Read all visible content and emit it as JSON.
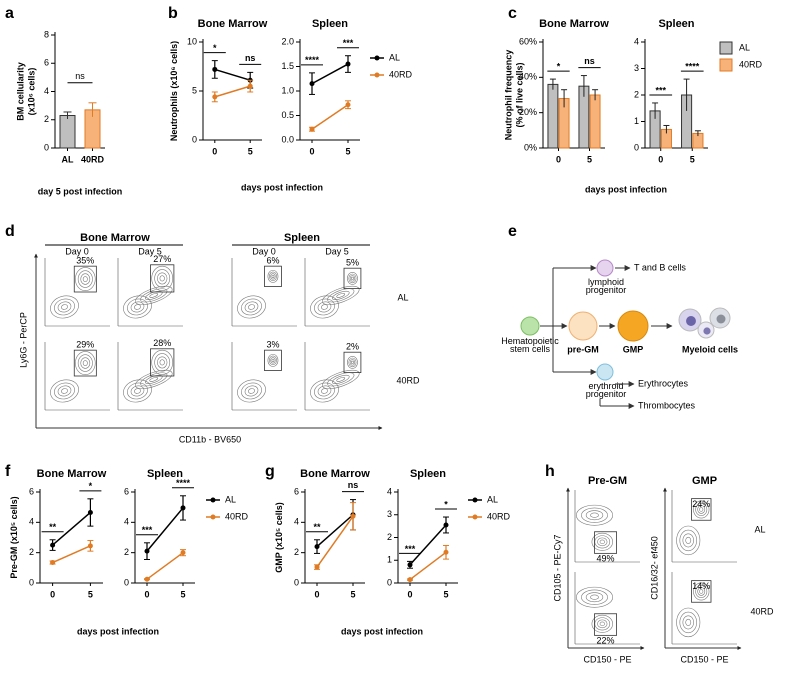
{
  "chart_data": [
    {
      "panel_label": "a",
      "type": "bar",
      "ylabel": [
        "BM cellularity",
        "(x10⁶ cells)"
      ],
      "xlabel": "day 5 post infection",
      "categories": [
        "AL",
        "40RD"
      ],
      "values": [
        2.3,
        2.7
      ],
      "errors": [
        0.25,
        0.5
      ],
      "colors": [
        "#bfbfbf",
        "#f7b27a"
      ],
      "edge_colors": [
        "#333333",
        "#e07b24"
      ],
      "annotation": "ns",
      "ylim": [
        0,
        8
      ],
      "yticks": [
        0,
        2,
        4,
        6,
        8
      ]
    },
    {
      "panel_label": "b",
      "type": "line",
      "title": "Bone Marrow",
      "ylabel": [
        "Neutrophils (x10⁶ cells)"
      ],
      "xlabel": "days post infection",
      "categories": [
        "0",
        "5"
      ],
      "series": [
        {
          "color": "#000000",
          "values": [
            7.2,
            6.1
          ],
          "errors": [
            0.9,
            0.8
          ]
        },
        {
          "color": "#e07b24",
          "values": [
            4.4,
            5.5
          ],
          "errors": [
            0.5,
            0.6
          ]
        }
      ],
      "annotations": [
        "*",
        "ns"
      ],
      "ylim": [
        0,
        10
      ],
      "yticks": [
        0,
        5,
        10
      ]
    },
    {
      "type": "line",
      "title": "Spleen",
      "categories": [
        "0",
        "5"
      ],
      "series": [
        {
          "name": "AL",
          "color": "#000000",
          "values": [
            1.15,
            1.55
          ],
          "errors": [
            0.22,
            0.17
          ]
        },
        {
          "name": "40RD",
          "color": "#e07b24",
          "values": [
            0.22,
            0.72
          ],
          "errors": [
            0.04,
            0.08
          ]
        }
      ],
      "annotations": [
        "****",
        "***"
      ],
      "ylim": [
        0,
        2
      ],
      "yticks": [
        {
          "value": 0,
          "label": "0.0"
        },
        {
          "value": 0.5,
          "label": "0.5"
        },
        {
          "value": 1,
          "label": "1.0"
        },
        {
          "value": 1.5,
          "label": "1.5"
        },
        {
          "value": 2,
          "label": "2.0"
        }
      ]
    },
    {
      "panel_label": "c",
      "type": "bar",
      "title": "Bone Marrow",
      "ylabel": [
        "Neutrophil frequency",
        "(% of live cells)"
      ],
      "xlabel": "days post infection",
      "categories": [
        "0",
        "5"
      ],
      "series": [
        {
          "color": "#bfbfbf",
          "edge": "#333333",
          "values": [
            36,
            35
          ],
          "errors": [
            3,
            6
          ]
        },
        {
          "color": "#f7b27a",
          "edge": "#e07b24",
          "values": [
            28,
            30
          ],
          "errors": [
            5,
            3
          ]
        }
      ],
      "annotations": [
        "*",
        "ns"
      ],
      "ylim": [
        0,
        60
      ],
      "yticks": [
        {
          "value": 0,
          "label": "0%"
        },
        {
          "value": 20,
          "label": "20%"
        },
        {
          "value": 40,
          "label": "40%"
        },
        {
          "value": 60,
          "label": "60%"
        }
      ]
    },
    {
      "type": "bar",
      "title": "Spleen",
      "categories": [
        "0",
        "5"
      ],
      "series": [
        {
          "name": "AL",
          "color": "#bfbfbf",
          "edge": "#333333",
          "values": [
            1.4,
            2.0
          ],
          "errors": [
            0.3,
            0.6
          ]
        },
        {
          "name": "40RD",
          "color": "#f7b27a",
          "edge": "#e07b24",
          "values": [
            0.7,
            0.55
          ],
          "errors": [
            0.15,
            0.1
          ]
        }
      ],
      "annotations": [
        "***",
        "****"
      ],
      "ylim": [
        0,
        4
      ],
      "yticks": [
        0,
        1,
        2,
        3,
        4
      ]
    },
    {
      "panel_label": "f",
      "type": "line",
      "title": "Bone Marrow",
      "ylabel": [
        "Pre-GM (x10⁵ cells)"
      ],
      "xlabel": "days post infection",
      "categories": [
        "0",
        "5"
      ],
      "series": [
        {
          "color": "#000000",
          "values": [
            2.5,
            4.65
          ],
          "errors": [
            0.35,
            0.9
          ]
        },
        {
          "color": "#e07b24",
          "values": [
            1.35,
            2.45
          ],
          "errors": [
            0.1,
            0.35
          ]
        }
      ],
      "annotations": [
        "**",
        "*"
      ],
      "ylim": [
        0,
        6
      ],
      "yticks": [
        0,
        2,
        4,
        6
      ]
    },
    {
      "type": "line",
      "title": "Spleen",
      "categories": [
        "0",
        "5"
      ],
      "series": [
        {
          "name": "AL",
          "color": "#000000",
          "values": [
            2.1,
            4.95
          ],
          "errors": [
            0.55,
            0.8
          ]
        },
        {
          "name": "40RD",
          "color": "#e07b24",
          "values": [
            0.25,
            2.0
          ],
          "errors": [
            0.03,
            0.2
          ]
        }
      ],
      "annotations": [
        "***",
        "****"
      ],
      "ylim": [
        0,
        6
      ],
      "yticks": [
        0,
        2,
        4,
        6
      ]
    },
    {
      "panel_label": "g",
      "type": "line",
      "title": "Bone Marrow",
      "ylabel": [
        "GMP (x10⁵ cells)"
      ],
      "xlabel": "days post infection",
      "categories": [
        "0",
        "5"
      ],
      "series": [
        {
          "color": "#000000",
          "values": [
            2.4,
            4.5
          ],
          "errors": [
            0.45,
            1.0
          ]
        },
        {
          "color": "#e07b24",
          "values": [
            1.05,
            4.4
          ],
          "errors": [
            0.15,
            0.9
          ]
        }
      ],
      "annotations": [
        "**",
        "ns"
      ],
      "ylim": [
        0,
        6
      ],
      "yticks": [
        0,
        2,
        4,
        6
      ]
    },
    {
      "type": "line",
      "title": "Spleen",
      "categories": [
        "0",
        "5"
      ],
      "series": [
        {
          "name": "AL",
          "color": "#000000",
          "values": [
            0.8,
            2.55
          ],
          "errors": [
            0.15,
            0.35
          ]
        },
        {
          "name": "40RD",
          "color": "#e07b24",
          "values": [
            0.15,
            1.35
          ],
          "errors": [
            0.03,
            0.3
          ]
        }
      ],
      "annotations": [
        "***",
        "*"
      ],
      "ylim": [
        0,
        4
      ],
      "yticks": [
        0,
        1,
        2,
        3,
        4
      ]
    }
  ],
  "flow_d": {
    "panel_label": "d",
    "headers": [
      "Bone Marrow",
      "Spleen"
    ],
    "days": [
      "Day 0",
      "Day 5",
      "Day 0",
      "Day 5"
    ],
    "groups": [
      "AL",
      "40RD"
    ],
    "percents": [
      [
        "35%",
        "27%",
        "6%",
        "5%"
      ],
      [
        "29%",
        "28%",
        "3%",
        "2%"
      ]
    ],
    "y_axis": "Ly6G - PerCP",
    "x_axis": "CD11b - BV650"
  },
  "diagram_e": {
    "panel_label": "e",
    "stem": [
      "Hematopoietic",
      "stem cells"
    ],
    "lymphoid": [
      "lymphoid",
      "progenitor"
    ],
    "lymphoid_output": "T and B cells",
    "pre_gm": "pre-GM",
    "gmp": "GMP",
    "myeloid": "Myeloid cells",
    "erythroid": [
      "erythroid",
      "progenitor"
    ],
    "erythroid_outputs": [
      "Erythrocytes",
      "Thrombocytes"
    ]
  },
  "flow_h": {
    "panel_label": "h",
    "columns": [
      "Pre-GM",
      "GMP"
    ],
    "groups": [
      "AL",
      "40RD"
    ],
    "percents": [
      [
        "49%",
        "24%"
      ],
      [
        "22%",
        "14%"
      ]
    ],
    "y_axes": [
      "CD105 - PE-Cy7",
      "CD16/32- ef450"
    ],
    "x_axes": [
      "CD150 - PE",
      "CD150 - PE"
    ]
  }
}
